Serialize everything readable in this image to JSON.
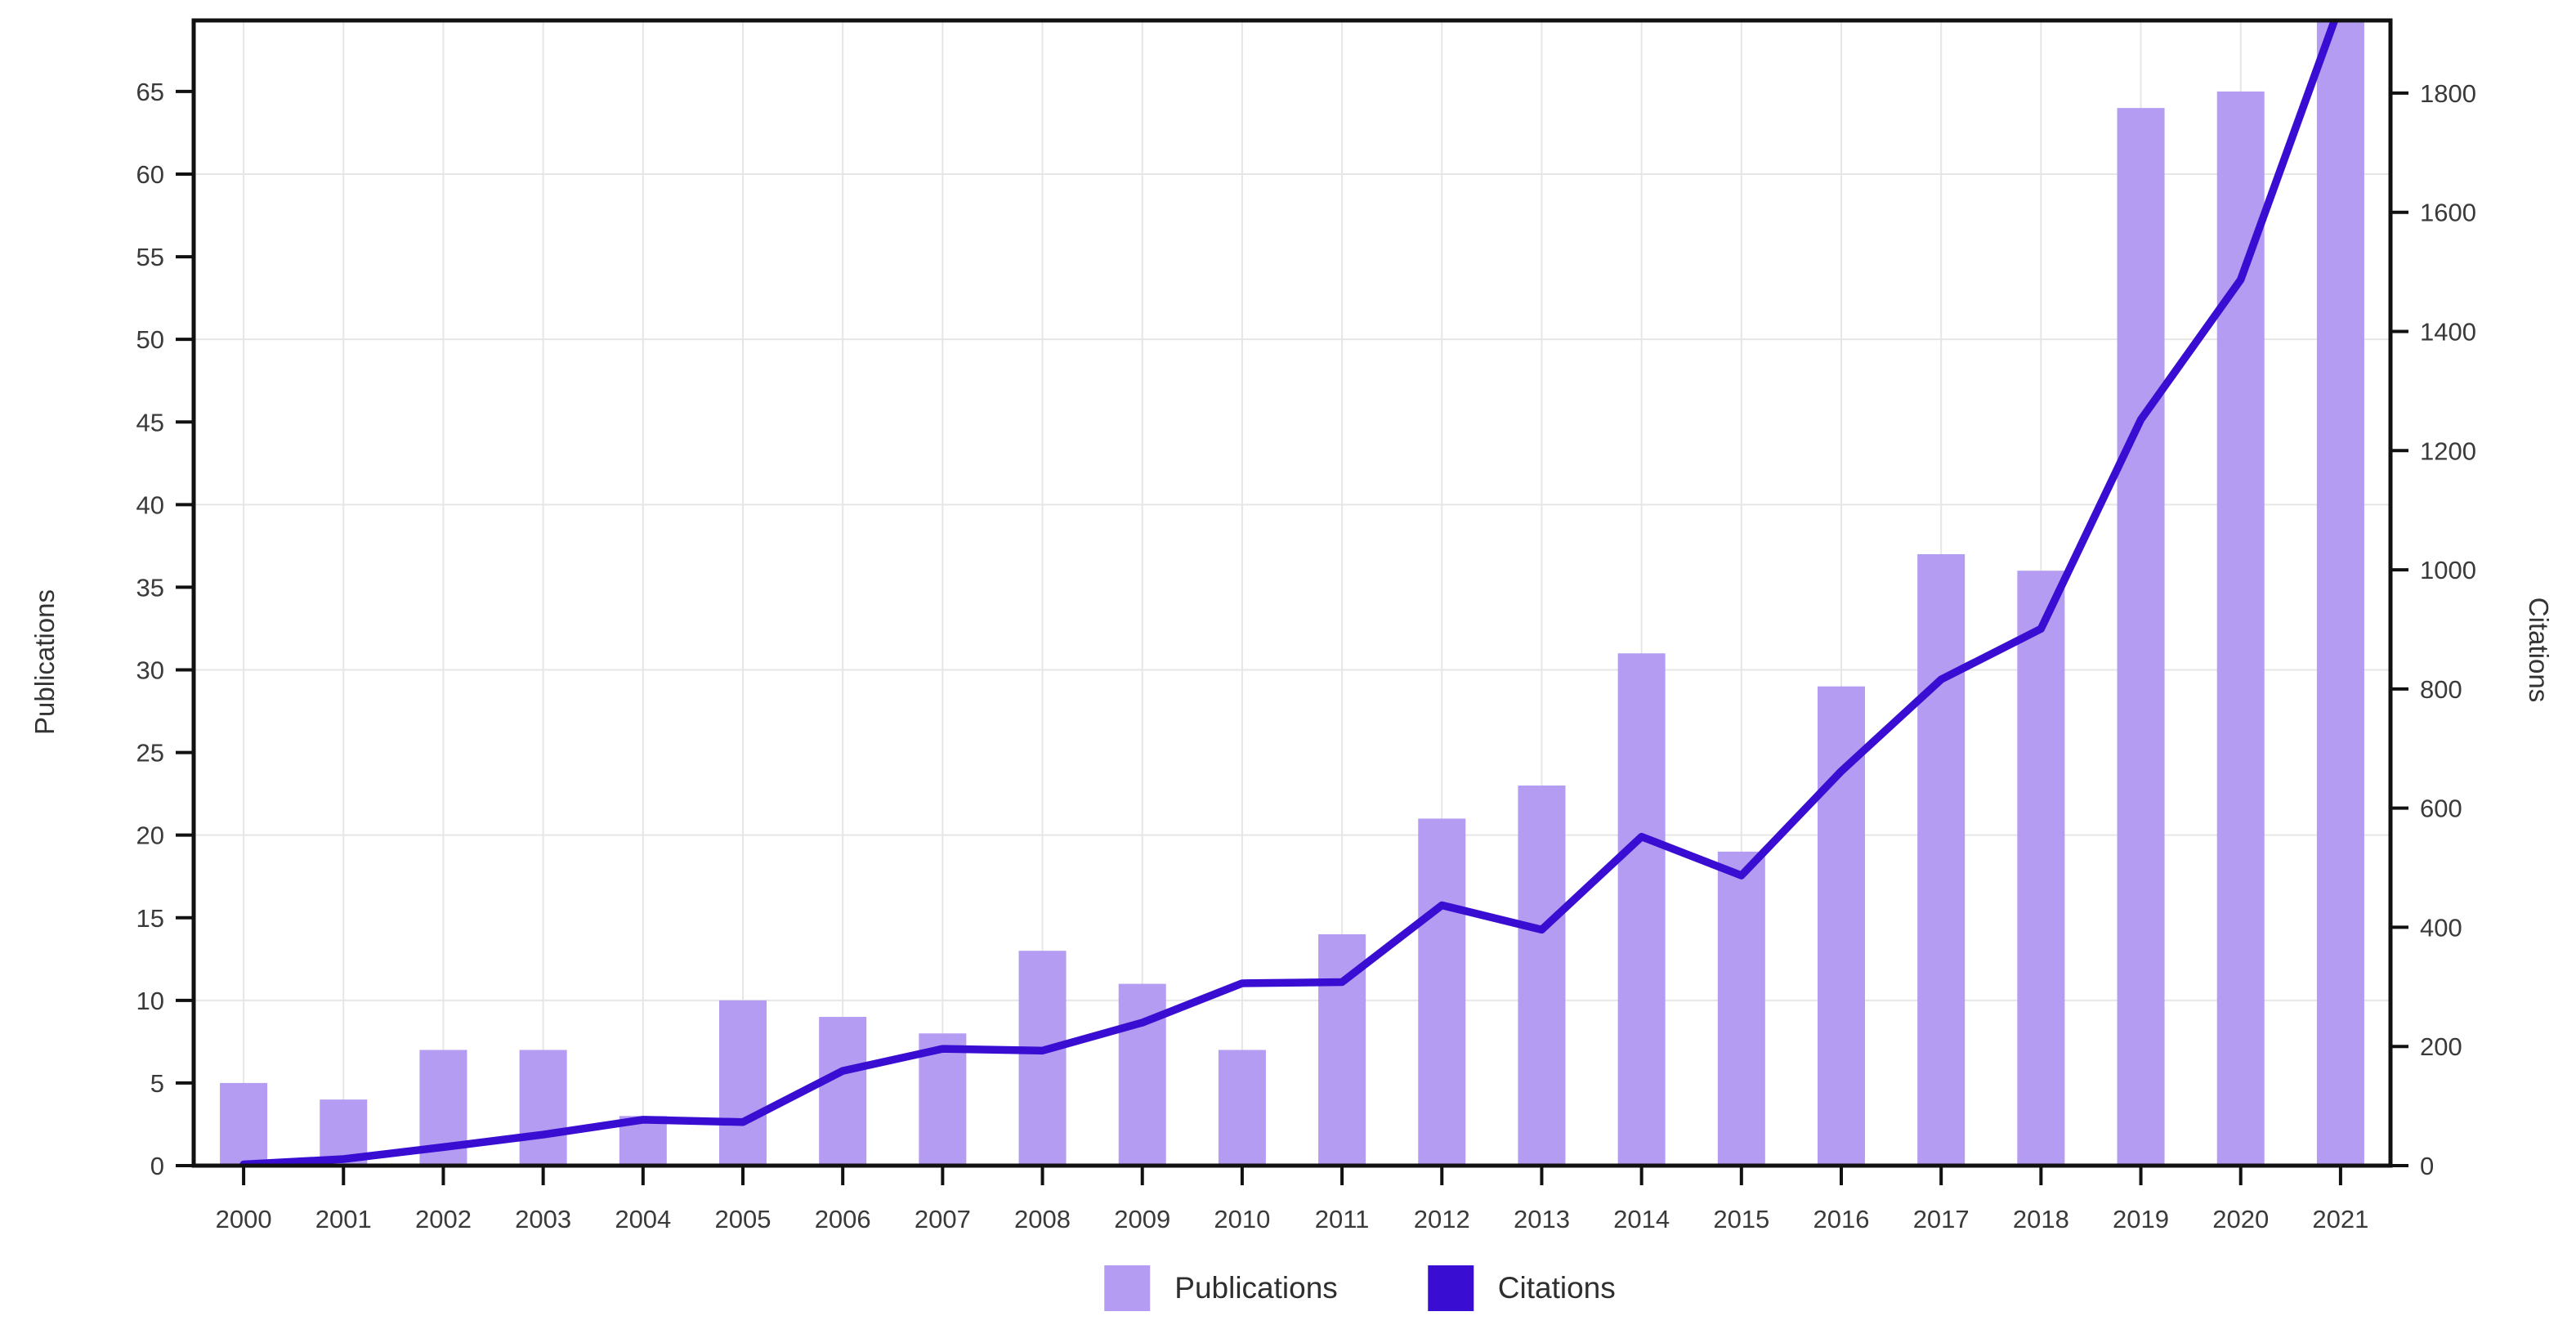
{
  "figure": {
    "background": "#ffffff"
  },
  "chart_data": {
    "type": "bar+line",
    "title": "",
    "categories": [
      "2000",
      "2001",
      "2002",
      "2003",
      "2004",
      "2005",
      "2006",
      "2007",
      "2008",
      "2009",
      "2010",
      "2011",
      "2012",
      "2013",
      "2014",
      "2015",
      "2016",
      "2017",
      "2018",
      "2019",
      "2020",
      "2021"
    ],
    "series": [
      {
        "name": "Publications",
        "kind": "bar",
        "axis": "left",
        "color": "#b39cf2",
        "values": [
          5,
          4,
          7,
          7,
          3,
          10,
          9,
          8,
          13,
          11,
          7,
          14,
          21,
          23,
          31,
          19,
          29,
          37,
          36,
          64,
          65,
          70
        ]
      },
      {
        "name": "Citations",
        "kind": "line",
        "axis": "right",
        "color": "#3a0dd2",
        "values": [
          2,
          11,
          31,
          52,
          77,
          73,
          159,
          196,
          193,
          240,
          306,
          308,
          437,
          396,
          552,
          487,
          662,
          816,
          901,
          1252,
          1487,
          1950
        ]
      }
    ],
    "axes": {
      "left": {
        "label": "Publications",
        "tick_labels": [
          "0",
          "5",
          "10",
          "15",
          "20",
          "25",
          "30",
          "35",
          "40",
          "45",
          "50",
          "55",
          "60",
          "65"
        ],
        "range": [
          0,
          69.3
        ]
      },
      "right": {
        "label": "Citations",
        "tick_labels": [
          "0",
          "200",
          "400",
          "600",
          "800",
          "1000",
          "1200",
          "1400",
          "1600",
          "1800"
        ],
        "range": [
          0,
          1922
        ]
      },
      "x": {
        "tick_labels": [
          "2000",
          "2001",
          "2002",
          "2003",
          "2004",
          "2005",
          "2006",
          "2007",
          "2008",
          "2009",
          "2010",
          "2011",
          "2012",
          "2013",
          "2014",
          "2015",
          "2016",
          "2017",
          "2018",
          "2019",
          "2020",
          "2021"
        ]
      }
    },
    "grid": {
      "horizontal_ticks": [
        10,
        20,
        30,
        40,
        50,
        60
      ],
      "vertical": "every-year",
      "color": "#e6e6e6"
    },
    "legend": {
      "position": "bottom-center",
      "items": [
        {
          "label": "Publications",
          "color": "#b39cf2"
        },
        {
          "label": "Citations",
          "color": "#3a0dd2"
        }
      ]
    },
    "style": {
      "axis_line_color": "#111111",
      "tick_label_color": "#3a3a3a",
      "clipped_at_top": "2021 bar and 2021 line point exceed the plot area and are clipped"
    }
  }
}
